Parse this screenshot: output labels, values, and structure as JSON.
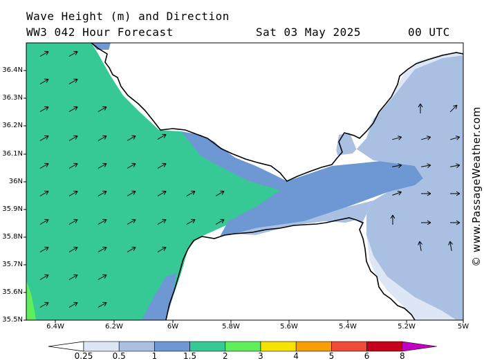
{
  "header": {
    "title": "Wave Height (m) and Direction",
    "subtitle": "WW3 042 Hour Forecast",
    "date": "Sat 03 May 2025",
    "time": "00 UTC"
  },
  "map": {
    "lat_labels": [
      "36.4N",
      "36.3N",
      "36.2N",
      "36.1N",
      "36N",
      "35.9N",
      "35.8N",
      "35.7N",
      "35.6N",
      "35.5N"
    ],
    "lon_labels": [
      "6.4W",
      "6.2W",
      "6W",
      "5.8W",
      "5.6W",
      "5.4W",
      "5.2W",
      "5W"
    ]
  },
  "colorbar": {
    "labels": [
      "0.25",
      "0.5",
      "1",
      "1.5",
      "2",
      "3",
      "4",
      "5",
      "6",
      "8"
    ],
    "colors": [
      "#dde6f4",
      "#a9c0e2",
      "#6d98d3",
      "#36c996",
      "#5fee5c",
      "#f7e302",
      "#f79d06",
      "#f04a38",
      "#c4001a",
      "#c200c2"
    ]
  },
  "watermark": "© www.PassageWeather.com"
}
